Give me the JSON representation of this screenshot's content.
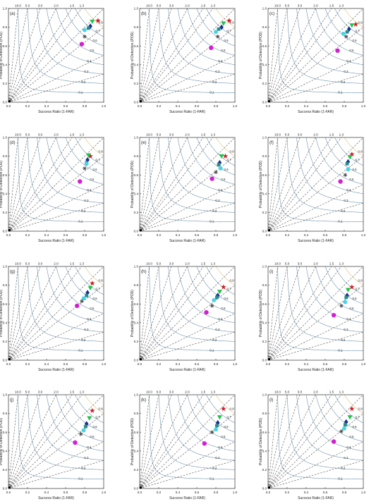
{
  "figure": {
    "axis_title_x": "Success Ratio (1-FAR)",
    "axis_title_y": "Probability of Detection (POD)",
    "ticks": [
      "0.0",
      "0.2",
      "0.4",
      "0.6",
      "0.8",
      "1.0"
    ],
    "bias_labels": [
      "10.0",
      "5.0",
      "3.0",
      "2.0",
      "1.5",
      "1.3"
    ],
    "csi_labels": [
      "0.1",
      "0.2",
      "0.3",
      "0.4",
      "0.5",
      "0.6",
      "0.7",
      "0.8"
    ],
    "colors": {
      "bias_line": "#555555",
      "csi_line": "#6f93ad",
      "csi_near": "#d9c27a",
      "star": "#d0202a",
      "triangle": "#22c14b",
      "diamond": "#1b2f8f",
      "square": "#2a8b8b",
      "hexagon": "#48d3e6",
      "asterisk": "#444444",
      "circle": "#d21fd2",
      "origin": "#000000"
    }
  },
  "chart_data": [
    {
      "type": "scatter",
      "panel": "(a)",
      "xlim": [
        0,
        1
      ],
      "ylim": [
        0,
        1
      ],
      "grid": false,
      "points": [
        {
          "marker": "star",
          "x": 0.94,
          "y": 0.87
        },
        {
          "marker": "triangle",
          "x": 0.88,
          "y": 0.86
        },
        {
          "marker": "diamond",
          "x": 0.86,
          "y": 0.81
        },
        {
          "marker": "square",
          "x": 0.84,
          "y": 0.79
        },
        {
          "marker": "hexagon",
          "x": 0.8,
          "y": 0.77
        },
        {
          "marker": "asterisk",
          "x": 0.8,
          "y": 0.7
        },
        {
          "marker": "circle",
          "x": 0.77,
          "y": 0.62
        }
      ]
    },
    {
      "type": "scatter",
      "panel": "(b)",
      "xlim": [
        0,
        1
      ],
      "ylim": [
        0,
        1
      ],
      "grid": false,
      "points": [
        {
          "marker": "star",
          "x": 0.94,
          "y": 0.87
        },
        {
          "marker": "triangle",
          "x": 0.88,
          "y": 0.84
        },
        {
          "marker": "diamond",
          "x": 0.86,
          "y": 0.8
        },
        {
          "marker": "square",
          "x": 0.83,
          "y": 0.78
        },
        {
          "marker": "hexagon",
          "x": 0.8,
          "y": 0.75
        },
        {
          "marker": "asterisk",
          "x": 0.82,
          "y": 0.7
        },
        {
          "marker": "circle",
          "x": 0.75,
          "y": 0.58
        }
      ]
    },
    {
      "type": "scatter",
      "panel": "(c)",
      "xlim": [
        0,
        1
      ],
      "ylim": [
        0,
        1
      ],
      "grid": false,
      "points": [
        {
          "marker": "star",
          "x": 0.92,
          "y": 0.83
        },
        {
          "marker": "triangle",
          "x": 0.88,
          "y": 0.82
        },
        {
          "marker": "diamond",
          "x": 0.85,
          "y": 0.78
        },
        {
          "marker": "square",
          "x": 0.83,
          "y": 0.75
        },
        {
          "marker": "hexagon",
          "x": 0.79,
          "y": 0.73
        },
        {
          "marker": "asterisk",
          "x": 0.82,
          "y": 0.7
        },
        {
          "marker": "circle",
          "x": 0.73,
          "y": 0.55
        }
      ]
    },
    {
      "type": "scatter",
      "panel": "(d)",
      "xlim": [
        0,
        1
      ],
      "ylim": [
        0,
        1
      ],
      "grid": false,
      "points": [
        {
          "marker": "star",
          "x": 0.86,
          "y": 0.8
        },
        {
          "marker": "triangle",
          "x": 0.84,
          "y": 0.81
        },
        {
          "marker": "diamond",
          "x": 0.83,
          "y": 0.76
        },
        {
          "marker": "square",
          "x": 0.82,
          "y": 0.73
        },
        {
          "marker": "hexagon",
          "x": 0.82,
          "y": 0.72
        },
        {
          "marker": "asterisk",
          "x": 0.8,
          "y": 0.67
        },
        {
          "marker": "circle",
          "x": 0.75,
          "y": 0.53
        }
      ]
    },
    {
      "type": "scatter",
      "panel": "(e)",
      "xlim": [
        0,
        1
      ],
      "ylim": [
        0,
        1
      ],
      "grid": false,
      "points": [
        {
          "marker": "star",
          "x": 0.9,
          "y": 0.8
        },
        {
          "marker": "triangle",
          "x": 0.86,
          "y": 0.8
        },
        {
          "marker": "diamond",
          "x": 0.84,
          "y": 0.73
        },
        {
          "marker": "square",
          "x": 0.83,
          "y": 0.71
        },
        {
          "marker": "hexagon",
          "x": 0.85,
          "y": 0.67
        },
        {
          "marker": "asterisk",
          "x": 0.8,
          "y": 0.63
        },
        {
          "marker": "circle",
          "x": 0.76,
          "y": 0.56
        }
      ]
    },
    {
      "type": "scatter",
      "panel": "(f)",
      "xlim": [
        0,
        1
      ],
      "ylim": [
        0,
        1
      ],
      "grid": false,
      "points": [
        {
          "marker": "star",
          "x": 0.88,
          "y": 0.82
        },
        {
          "marker": "triangle",
          "x": 0.86,
          "y": 0.79
        },
        {
          "marker": "diamond",
          "x": 0.84,
          "y": 0.74
        },
        {
          "marker": "square",
          "x": 0.83,
          "y": 0.72
        },
        {
          "marker": "hexagon",
          "x": 0.84,
          "y": 0.66
        },
        {
          "marker": "asterisk",
          "x": 0.81,
          "y": 0.6
        },
        {
          "marker": "circle",
          "x": 0.76,
          "y": 0.53
        }
      ]
    },
    {
      "type": "scatter",
      "panel": "(g)",
      "xlim": [
        0,
        1
      ],
      "ylim": [
        0,
        1
      ],
      "grid": false,
      "points": [
        {
          "marker": "star",
          "x": 0.88,
          "y": 0.82
        },
        {
          "marker": "triangle",
          "x": 0.86,
          "y": 0.77
        },
        {
          "marker": "diamond",
          "x": 0.83,
          "y": 0.72
        },
        {
          "marker": "square",
          "x": 0.82,
          "y": 0.69
        },
        {
          "marker": "hexagon",
          "x": 0.79,
          "y": 0.66
        },
        {
          "marker": "asterisk",
          "x": 0.77,
          "y": 0.63
        },
        {
          "marker": "circle",
          "x": 0.72,
          "y": 0.58
        }
      ]
    },
    {
      "type": "scatter",
      "panel": "(h)",
      "xlim": [
        0,
        1
      ],
      "ylim": [
        0,
        1
      ],
      "grid": false,
      "points": [
        {
          "marker": "star",
          "x": 0.88,
          "y": 0.78
        },
        {
          "marker": "triangle",
          "x": 0.84,
          "y": 0.73
        },
        {
          "marker": "diamond",
          "x": 0.82,
          "y": 0.69
        },
        {
          "marker": "square",
          "x": 0.81,
          "y": 0.67
        },
        {
          "marker": "hexagon",
          "x": 0.78,
          "y": 0.64
        },
        {
          "marker": "asterisk",
          "x": 0.76,
          "y": 0.58
        },
        {
          "marker": "circle",
          "x": 0.7,
          "y": 0.51
        }
      ]
    },
    {
      "type": "scatter",
      "panel": "(i)",
      "xlim": [
        0,
        1
      ],
      "ylim": [
        0,
        1
      ],
      "grid": false,
      "points": [
        {
          "marker": "star",
          "x": 0.88,
          "y": 0.78
        },
        {
          "marker": "triangle",
          "x": 0.84,
          "y": 0.75
        },
        {
          "marker": "diamond",
          "x": 0.83,
          "y": 0.69
        },
        {
          "marker": "square",
          "x": 0.82,
          "y": 0.67
        },
        {
          "marker": "hexagon",
          "x": 0.81,
          "y": 0.62
        },
        {
          "marker": "asterisk",
          "x": 0.77,
          "y": 0.58
        },
        {
          "marker": "circle",
          "x": 0.69,
          "y": 0.48
        }
      ]
    },
    {
      "type": "scatter",
      "panel": "(j)",
      "xlim": [
        0,
        1
      ],
      "ylim": [
        0,
        1
      ],
      "grid": false,
      "points": [
        {
          "marker": "star",
          "x": 0.88,
          "y": 0.83
        },
        {
          "marker": "triangle",
          "x": 0.85,
          "y": 0.75
        },
        {
          "marker": "diamond",
          "x": 0.82,
          "y": 0.69
        },
        {
          "marker": "square",
          "x": 0.81,
          "y": 0.66
        },
        {
          "marker": "hexagon",
          "x": 0.79,
          "y": 0.62
        },
        {
          "marker": "asterisk",
          "x": 0.76,
          "y": 0.58
        },
        {
          "marker": "circle",
          "x": 0.7,
          "y": 0.49
        }
      ]
    },
    {
      "type": "scatter",
      "panel": "(k)",
      "xlim": [
        0,
        1
      ],
      "ylim": [
        0,
        1
      ],
      "grid": false,
      "points": [
        {
          "marker": "star",
          "x": 0.88,
          "y": 0.85
        },
        {
          "marker": "triangle",
          "x": 0.84,
          "y": 0.76
        },
        {
          "marker": "diamond",
          "x": 0.82,
          "y": 0.7
        },
        {
          "marker": "square",
          "x": 0.81,
          "y": 0.67
        },
        {
          "marker": "hexagon",
          "x": 0.8,
          "y": 0.63
        },
        {
          "marker": "asterisk",
          "x": 0.76,
          "y": 0.6
        },
        {
          "marker": "circle",
          "x": 0.68,
          "y": 0.48
        }
      ]
    },
    {
      "type": "scatter",
      "panel": "(l)",
      "xlim": [
        0,
        1
      ],
      "ylim": [
        0,
        1
      ],
      "grid": false,
      "points": [
        {
          "marker": "star",
          "x": 0.88,
          "y": 0.85
        },
        {
          "marker": "triangle",
          "x": 0.86,
          "y": 0.76
        },
        {
          "marker": "diamond",
          "x": 0.82,
          "y": 0.71
        },
        {
          "marker": "square",
          "x": 0.81,
          "y": 0.68
        },
        {
          "marker": "hexagon",
          "x": 0.8,
          "y": 0.64
        },
        {
          "marker": "asterisk",
          "x": 0.77,
          "y": 0.61
        },
        {
          "marker": "circle",
          "x": 0.69,
          "y": 0.5
        }
      ]
    }
  ]
}
